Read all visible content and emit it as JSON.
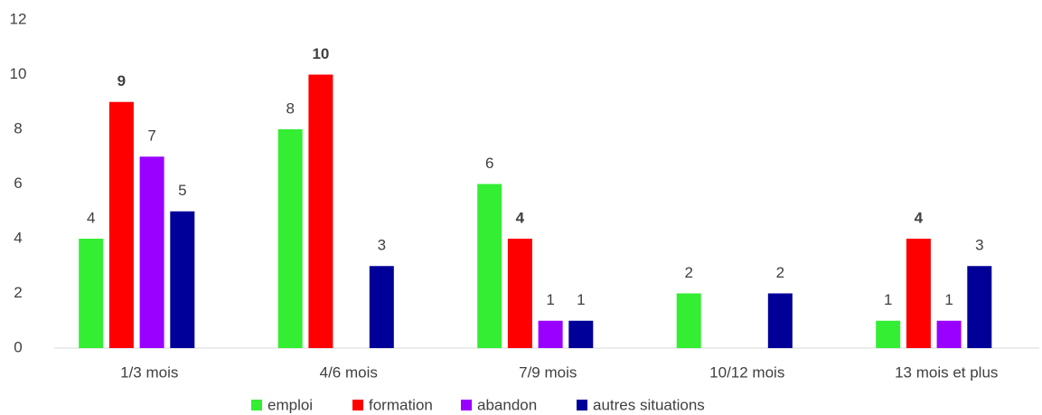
{
  "chart_data": {
    "type": "bar",
    "categories": [
      "1/3 mois",
      "4/6 mois",
      "7/9 mois",
      "10/12 mois",
      "13 mois et plus"
    ],
    "series": [
      {
        "name": "emploi",
        "color": "#33ee33",
        "values": [
          4,
          8,
          6,
          2,
          1
        ]
      },
      {
        "name": "formation",
        "color": "#ff0000",
        "values": [
          9,
          10,
          4,
          null,
          4
        ]
      },
      {
        "name": "abandon",
        "color": "#9900ff",
        "values": [
          7,
          null,
          1,
          null,
          1
        ]
      },
      {
        "name": "autres situations",
        "color": "#000099",
        "values": [
          5,
          3,
          1,
          2,
          3
        ]
      }
    ],
    "ylim": [
      0,
      12
    ],
    "yticks": [
      0,
      2,
      4,
      6,
      8,
      10,
      12
    ],
    "grid": false,
    "legend": "bottom"
  }
}
